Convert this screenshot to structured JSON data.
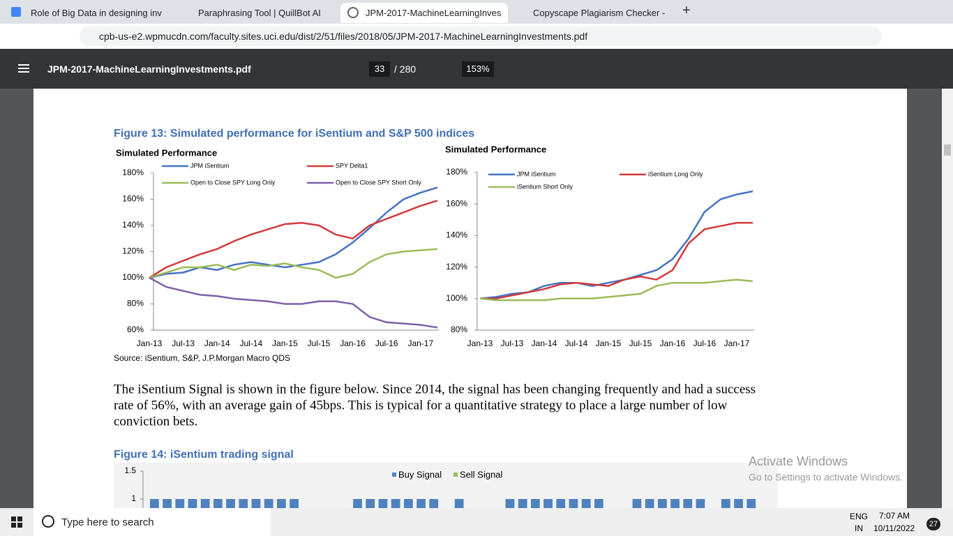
{
  "browser": {
    "tabs": [
      "Role of Big Data in designing inv",
      "Paraphrasing Tool | QuillBot AI",
      "JPM-2017-MachineLearningInves",
      "Copyscape Plagiarism Checker - "
    ],
    "url": "cpb-us-e2.wpmucdn.com/faculty.sites.uci.edu/dist/2/51/files/2018/05/JPM-2017-MachineLearningInvestments.pdf"
  },
  "pdf_toolbar": {
    "file": "JPM-2017-MachineLearningInvestments.pdf",
    "page": "33",
    "total": "/ 280",
    "zoom": "153%"
  },
  "document": {
    "figure13_title": "Figure 13: Simulated performance for iSentium and S&P 500 indices",
    "source": "Source: iSentium, S&P, J.P.Morgan Macro QDS",
    "lines": [
      "The iSentium Signal is shown in the figure below. Since 2014, the signal has been changing frequently and had a success",
      "rate of 56%, with an average gain of 45bps. This is typical for a quantitative strategy to place a large number of low",
      "conviction bets."
    ],
    "figure14_title": "Figure 14: iSentium trading signal"
  },
  "chart_data": [
    {
      "type": "line",
      "title": "Simulated Performance",
      "categories": [
        "Jan-13",
        null,
        "Jul-13",
        null,
        "Jan-14",
        null,
        "Jul-14",
        null,
        "Jan-15",
        null,
        "Jul-15",
        null,
        "Jan-16",
        null,
        "Jul-16",
        null,
        "Jan-17",
        null
      ],
      "series": [
        {
          "name": "JPM iSentium",
          "color": "#4472c4",
          "values": [
            100,
            103,
            104,
            108,
            106,
            110,
            112,
            110,
            108,
            110,
            112,
            118,
            127,
            138,
            150,
            160,
            165,
            169
          ]
        },
        {
          "name": "SPY Delta1",
          "color": "#d03a3a",
          "values": [
            100,
            108,
            113,
            118,
            122,
            128,
            133,
            137,
            141,
            142,
            140,
            133,
            130,
            140,
            145,
            150,
            155,
            159
          ]
        },
        {
          "name": "Open to Close SPY Long Only",
          "color": "#9bbb59",
          "values": [
            100,
            104,
            108,
            108,
            110,
            106,
            110,
            109,
            111,
            108,
            106,
            100,
            103,
            112,
            118,
            120,
            121,
            122
          ]
        },
        {
          "name": "Open to Close SPY Short Only",
          "color": "#7f5fa8",
          "values": [
            100,
            93,
            90,
            87,
            86,
            84,
            83,
            82,
            80,
            80,
            82,
            82,
            80,
            70,
            66,
            65,
            64,
            62
          ]
        }
      ],
      "ylim": [
        60,
        180
      ],
      "yticks": [
        {
          "value": 60,
          "label": "60%"
        },
        {
          "value": 80,
          "label": "80%"
        },
        {
          "value": 100,
          "label": "100%"
        },
        {
          "value": 120,
          "label": "120%"
        },
        {
          "value": 140,
          "label": "140%"
        },
        {
          "value": 160,
          "label": "160%"
        },
        {
          "value": 180,
          "label": "180%"
        }
      ]
    },
    {
      "type": "line",
      "title": "Simulated Performance",
      "categories": [
        "Jan-13",
        null,
        "Jul-13",
        null,
        "Jan-14",
        null,
        "Jul-14",
        null,
        "Jan-15",
        null,
        "Jul-15",
        null,
        "Jan-16",
        null,
        "Jul-16",
        null,
        "Jan-17",
        null
      ],
      "series": [
        {
          "name": "JPM iSentium",
          "color": "#4472c4",
          "values": [
            100,
            101,
            103,
            104,
            108,
            110,
            110,
            108,
            110,
            112,
            115,
            118,
            125,
            138,
            155,
            163,
            166,
            168
          ]
        },
        {
          "name": "iSentium Long Only",
          "color": "#d03a3a",
          "values": [
            100,
            100,
            102,
            104,
            106,
            109,
            110,
            109,
            108,
            112,
            114,
            112,
            118,
            135,
            144,
            146,
            148,
            148
          ]
        },
        {
          "name": "iSentium Short Only",
          "color": "#9bbb59",
          "values": [
            100,
            99,
            99,
            99,
            99,
            100,
            100,
            100,
            101,
            102,
            103,
            108,
            110,
            110,
            110,
            111,
            112,
            111
          ]
        }
      ],
      "ylim": [
        80,
        180
      ],
      "yticks": [
        {
          "value": 80,
          "label": "80%"
        },
        {
          "value": 100,
          "label": "100%"
        },
        {
          "value": 120,
          "label": "120%"
        },
        {
          "value": 140,
          "label": "140%"
        },
        {
          "value": 160,
          "label": "160%"
        },
        {
          "value": 180,
          "label": "180%"
        }
      ]
    },
    {
      "type": "bar",
      "series": [
        {
          "name": "Buy Signal",
          "color": "#4f81bd",
          "values": [
            1,
            1,
            1,
            1,
            1,
            1,
            1,
            1,
            1,
            1,
            1,
            1,
            0,
            0,
            0,
            0,
            1,
            1,
            1,
            1,
            1,
            1,
            1,
            0,
            1,
            0,
            0,
            0,
            1,
            1,
            1,
            1,
            1,
            1,
            1,
            1,
            0,
            0,
            1,
            1,
            1,
            1,
            1,
            1,
            0,
            1,
            1,
            1
          ]
        },
        {
          "name": "Sell Signal",
          "color": "#9bbb59"
        }
      ],
      "ylim": [
        0,
        1.5
      ],
      "yticks": [
        1,
        1.5
      ]
    }
  ],
  "watermark": {
    "title": "Activate Windows",
    "text": "Go to Settings to activate Windows."
  },
  "taskbar": {
    "search": "Type here to search",
    "lang": "ENG",
    "region": "IN",
    "time": "7:07 AM",
    "date": "10/11/2022",
    "badge": "27"
  }
}
